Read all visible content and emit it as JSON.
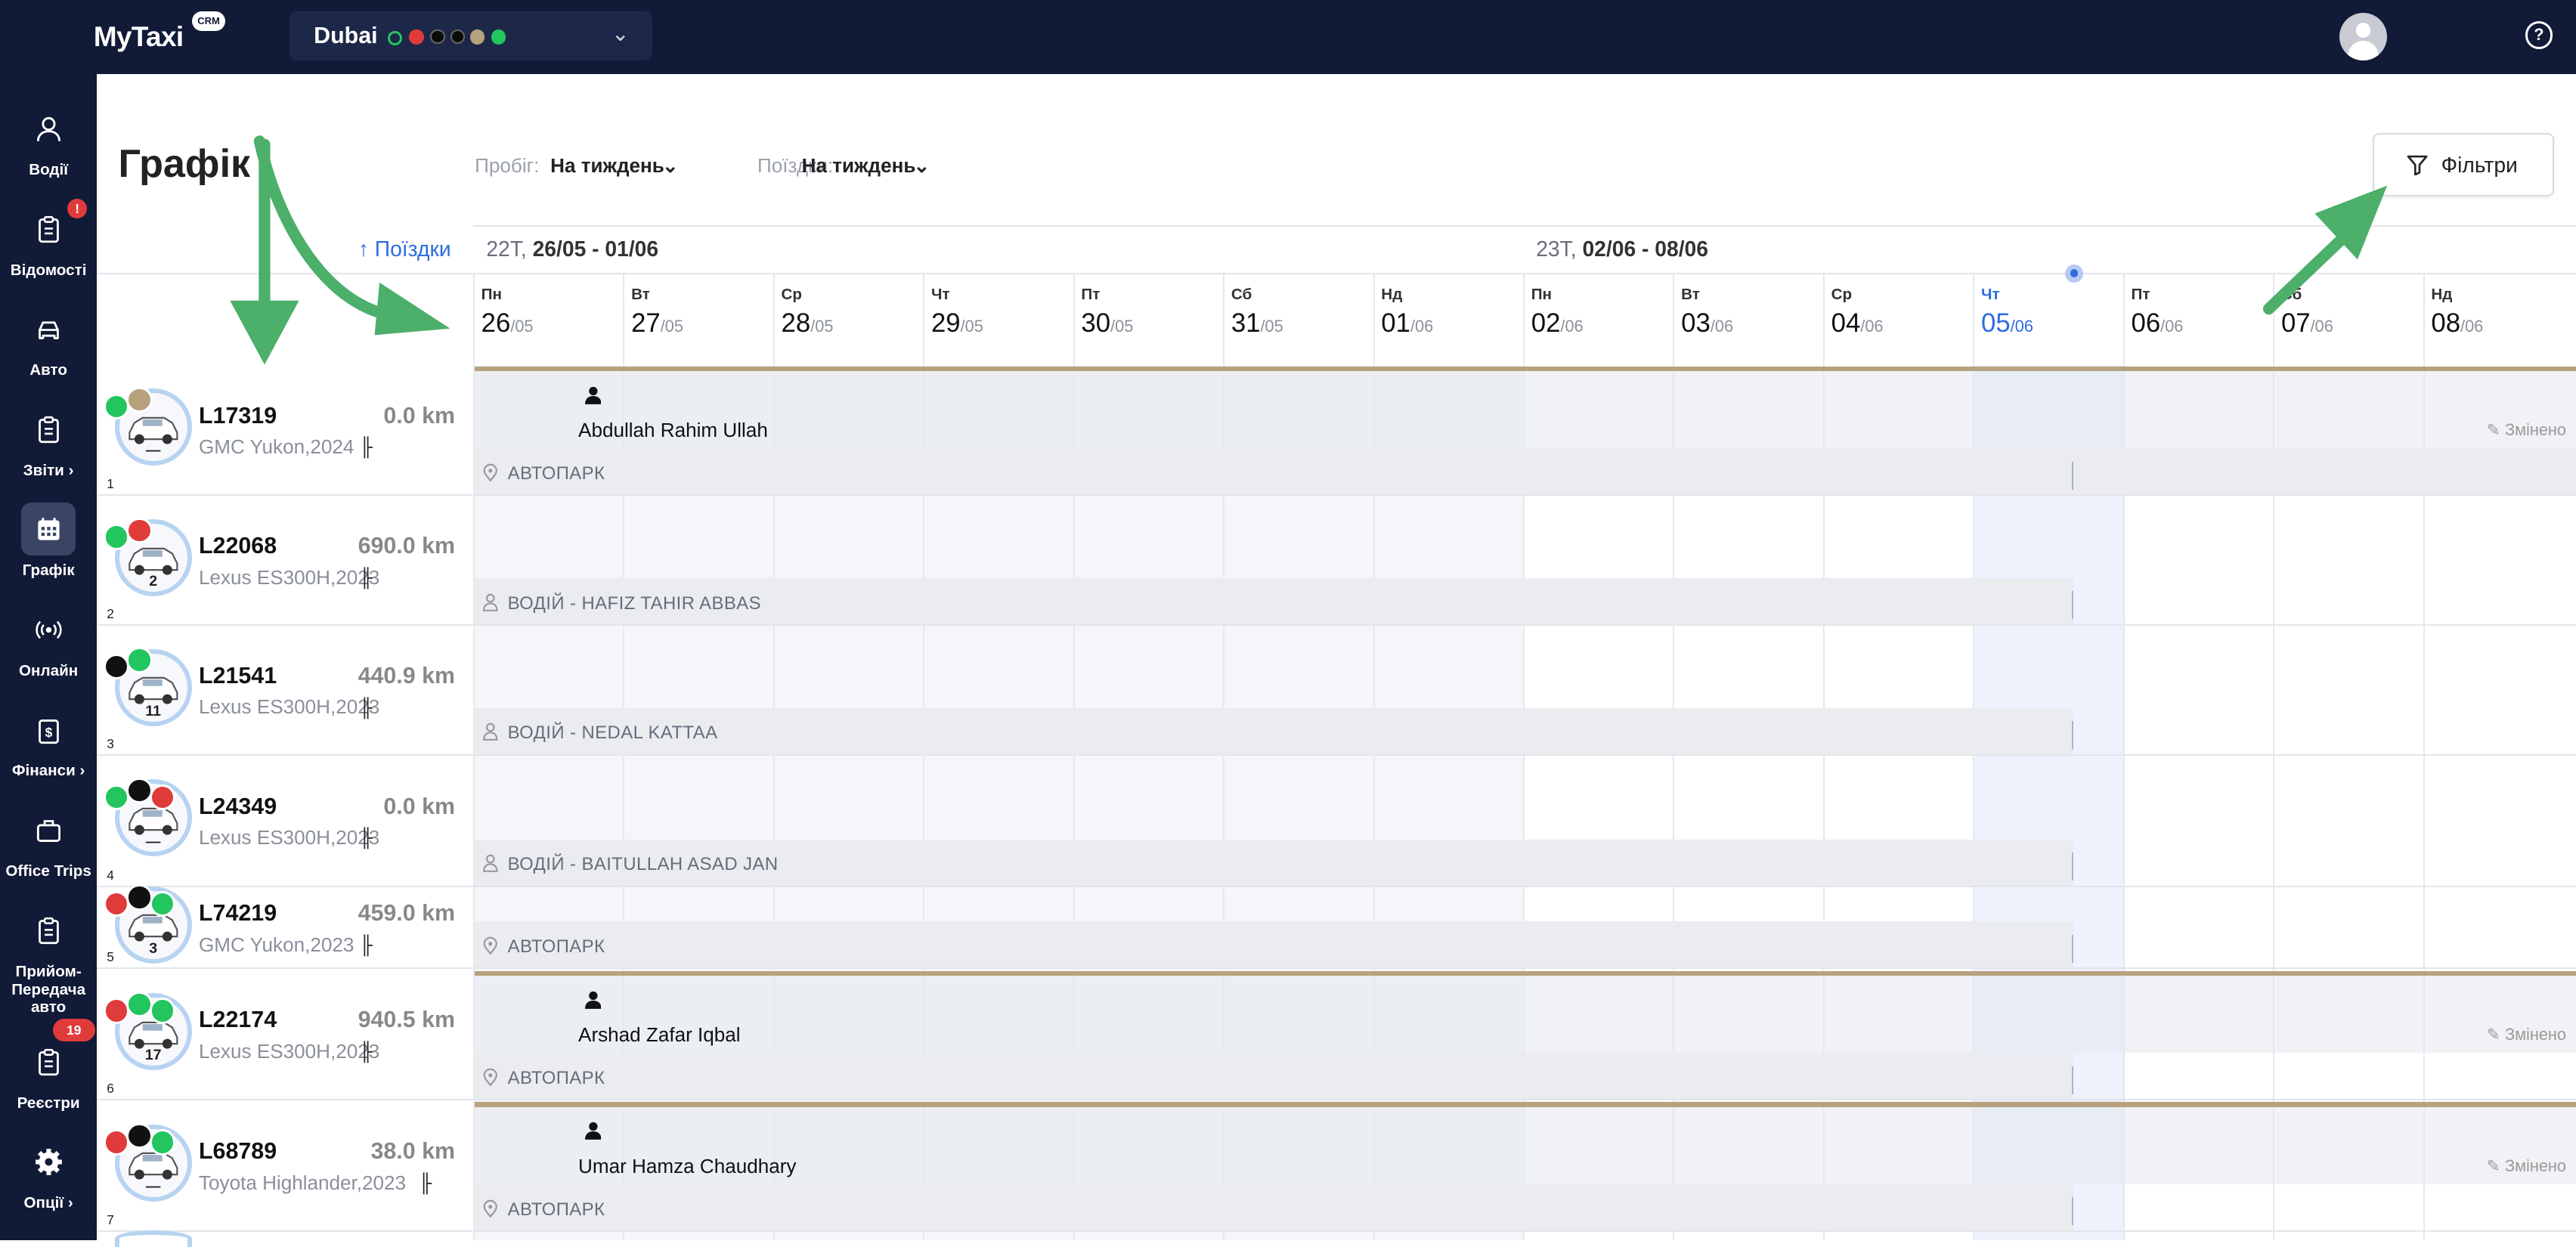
{
  "app": {
    "logo": "MyTaxi",
    "logo_badge": "CRM"
  },
  "city_selector": {
    "name": "Dubai",
    "status_colors": [
      "#22c55e",
      "#e03b3b",
      "#111111",
      "#111111",
      "#b7a27e",
      "#22c55e"
    ]
  },
  "sidebar": {
    "items": [
      {
        "label": "Водії",
        "icon": "user-icon"
      },
      {
        "label": "Відомості",
        "icon": "clipboard-icon",
        "badge": "!"
      },
      {
        "label": "Авто",
        "icon": "car-icon"
      },
      {
        "label": "Звіти",
        "icon": "clipboard-icon",
        "chevron": "›"
      },
      {
        "label": "Графік",
        "icon": "calendar-icon",
        "active": true
      },
      {
        "label": "Онлайн",
        "icon": "broadcast-icon"
      },
      {
        "label": "Фінанси",
        "icon": "money-icon",
        "chevron": "›"
      },
      {
        "label": "Office Trips",
        "icon": "briefcase-icon"
      },
      {
        "label": "Прийом-Передача авто",
        "icon": "clipboard-icon"
      },
      {
        "label": "Реєстри",
        "icon": "clipboard-icon",
        "badge": "19"
      },
      {
        "label": "Опції",
        "icon": "gear-icon",
        "chevron": "›"
      }
    ]
  },
  "header": {
    "title": "Графік",
    "mileage_label": "Пробіг:",
    "mileage_value": "На тиждень",
    "trips_label": "Поїздки:",
    "trips_value": "На тиждень",
    "filters_label": "Фільтри"
  },
  "schedule": {
    "sort_label": "↑ Поїздки",
    "weeks": [
      {
        "label": "22Т, ",
        "range": "26/05 - 01/06"
      },
      {
        "label": "23Т, ",
        "range": "02/06 - 08/06"
      }
    ],
    "days": [
      {
        "name": "Пн",
        "day": "26",
        "month": "/05"
      },
      {
        "name": "Вт",
        "day": "27",
        "month": "/05"
      },
      {
        "name": "Ср",
        "day": "28",
        "month": "/05"
      },
      {
        "name": "Чт",
        "day": "29",
        "month": "/05"
      },
      {
        "name": "Пт",
        "day": "30",
        "month": "/05"
      },
      {
        "name": "Сб",
        "day": "31",
        "month": "/05"
      },
      {
        "name": "Нд",
        "day": "01",
        "month": "/06"
      },
      {
        "name": "Пн",
        "day": "02",
        "month": "/06"
      },
      {
        "name": "Вт",
        "day": "03",
        "month": "/06"
      },
      {
        "name": "Ср",
        "day": "04",
        "month": "/06"
      },
      {
        "name": "Чт",
        "day": "05",
        "month": "/06",
        "today": true
      },
      {
        "name": "Пт",
        "day": "06",
        "month": "/06"
      },
      {
        "name": "Сб",
        "day": "07",
        "month": "/06"
      },
      {
        "name": "Нд",
        "day": "08",
        "month": "/06"
      }
    ],
    "changed_label": "Змінено",
    "vehicles": [
      {
        "idx": "1",
        "plate": "L17319",
        "km": "0.0 km",
        "model": "GMC Yukon,2024",
        "num": "—",
        "driver": "Abdullah Rahim Ullah",
        "band": "АВТОПАРК",
        "band_type": "park",
        "changed": true
      },
      {
        "idx": "2",
        "plate": "L22068",
        "km": "690.0 km",
        "model": "Lexus ES300H,2023",
        "num": "2",
        "driver": "",
        "band": "ВОДІЙ - HAFIZ TAHIR ABBAS",
        "band_type": "driver",
        "changed": false
      },
      {
        "idx": "3",
        "plate": "L21541",
        "km": "440.9 km",
        "model": "Lexus ES300H,2023",
        "num": "11",
        "driver": "",
        "band": "ВОДІЙ - NEDAL KATTAA",
        "band_type": "driver",
        "changed": false
      },
      {
        "idx": "4",
        "plate": "L24349",
        "km": "0.0 km",
        "model": "Lexus ES300H,2023",
        "num": "—",
        "driver": "",
        "band": "ВОДІЙ - BAITULLAH ASAD JAN",
        "band_type": "driver",
        "changed": false
      },
      {
        "idx": "5",
        "plate": "L74219",
        "km": "459.0 km",
        "model": "GMC Yukon,2023",
        "num": "3",
        "driver": "",
        "band": "АВТОПАРК",
        "band_type": "park",
        "changed": false
      },
      {
        "idx": "6",
        "plate": "L22174",
        "km": "940.5 km",
        "model": "Lexus ES300H,2023",
        "num": "17",
        "driver": "Arshad Zafar Iqbal",
        "band": "АВТОПАРК",
        "band_type": "park",
        "changed": true
      },
      {
        "idx": "7",
        "plate": "L68789",
        "km": "38.0 km",
        "model": "Toyota Highlander,2023",
        "num": "—",
        "driver": "Umar Hamza Chaudhary",
        "band": "АВТОПАРК",
        "band_type": "park",
        "changed": true
      }
    ]
  },
  "colors": {
    "topbar": "#111a36",
    "accent": "#2d6de0",
    "arrow": "#4caf6a",
    "gold_line": "#b7a27e"
  }
}
